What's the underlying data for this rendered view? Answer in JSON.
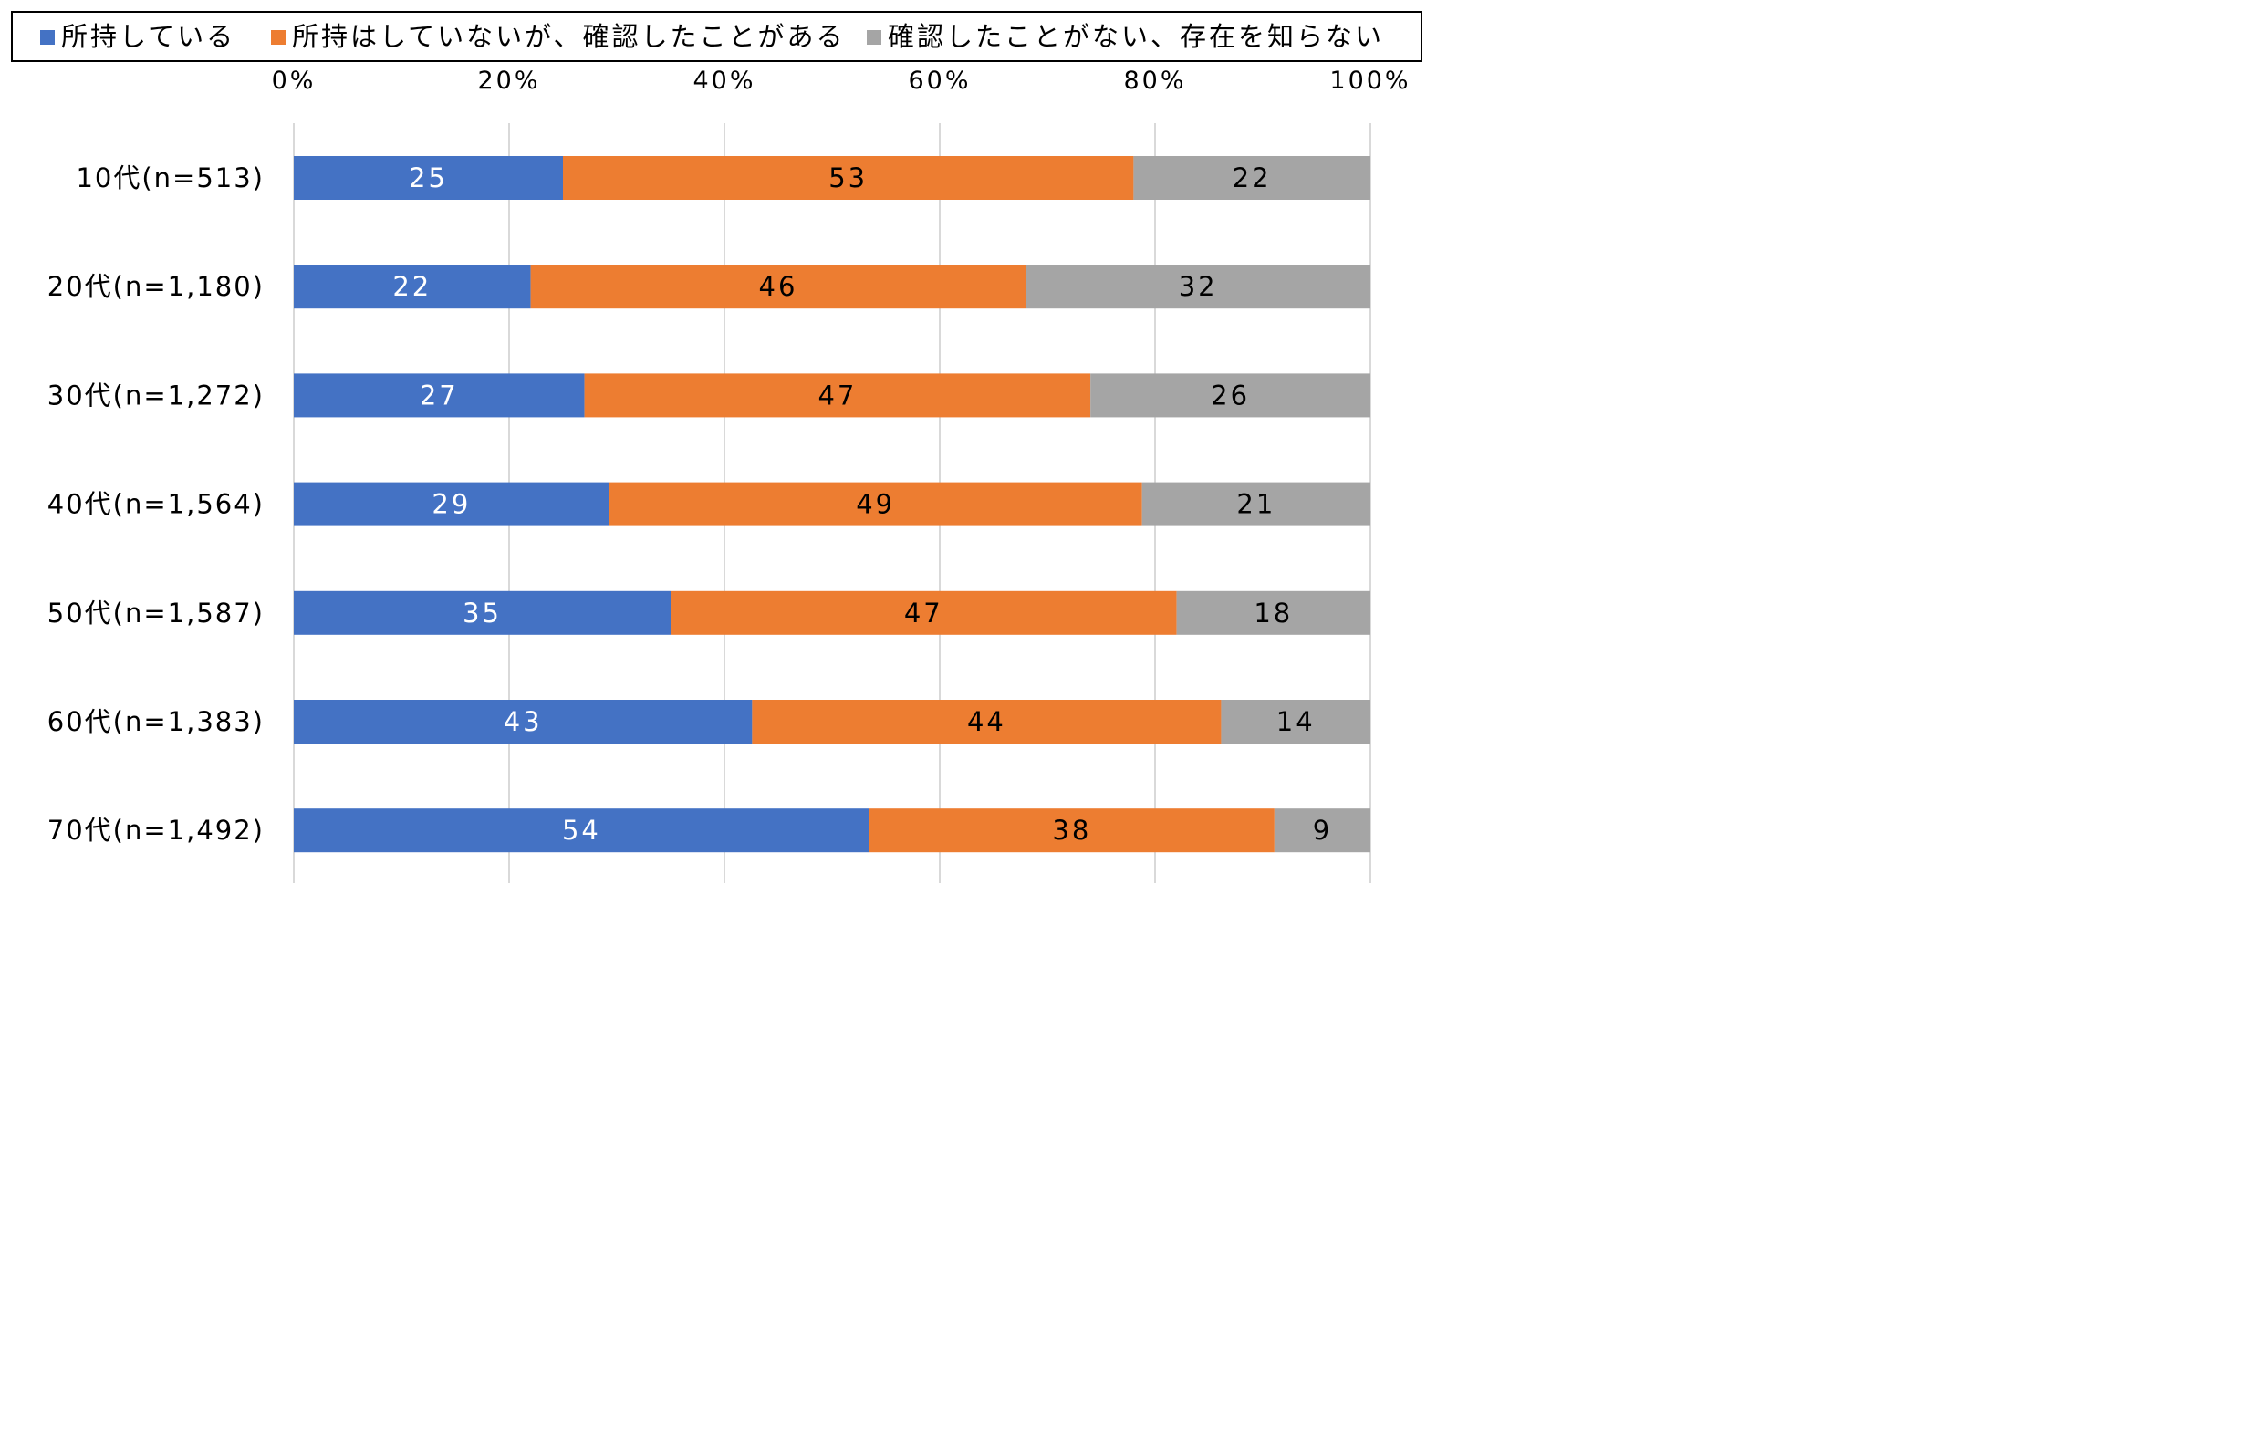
{
  "chart_data": {
    "type": "bar",
    "orientation": "horizontal",
    "stacked": "percent",
    "categories": [
      "10代(n=513)",
      "20代(n=1,180)",
      "30代(n=1,272)",
      "40代(n=1,564)",
      "50代(n=1,587)",
      "60代(n=1,383)",
      "70代(n=1,492)"
    ],
    "series": [
      {
        "name": "所持している",
        "color": "#4472C4",
        "label_color": "#ffffff",
        "values": [
          25,
          22,
          27,
          29,
          35,
          43,
          54
        ]
      },
      {
        "name": "所持はしていないが、確認したことがある",
        "color": "#ED7D31",
        "label_color": "#000000",
        "values": [
          53,
          46,
          47,
          49,
          47,
          44,
          38
        ]
      },
      {
        "name": "確認したことがない、存在を知らない",
        "color": "#A5A5A5",
        "label_color": "#000000",
        "values": [
          22,
          32,
          26,
          21,
          18,
          14,
          9
        ]
      }
    ],
    "xlim": [
      0,
      100
    ],
    "x_ticks": [
      "0%",
      "20%",
      "40%",
      "60%",
      "80%",
      "100%"
    ],
    "x_axis_position": "top",
    "grid": true,
    "legend_position": "top",
    "data_labels": true
  }
}
